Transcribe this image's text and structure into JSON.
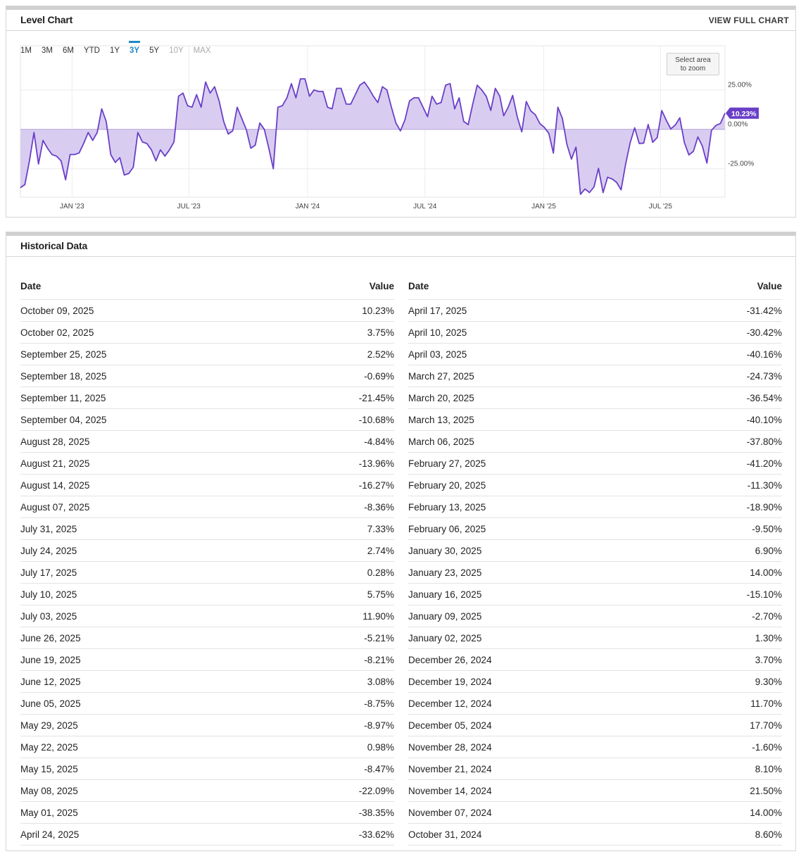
{
  "level_chart": {
    "title": "Level Chart",
    "view_full_chart": "VIEW FULL CHART",
    "ranges": [
      {
        "label": "1M",
        "state": "normal"
      },
      {
        "label": "3M",
        "state": "normal"
      },
      {
        "label": "6M",
        "state": "normal"
      },
      {
        "label": "YTD",
        "state": "normal"
      },
      {
        "label": "1Y",
        "state": "normal"
      },
      {
        "label": "3Y",
        "state": "active"
      },
      {
        "label": "5Y",
        "state": "normal"
      },
      {
        "label": "10Y",
        "state": "disabled"
      },
      {
        "label": "MAX",
        "state": "disabled"
      }
    ],
    "zoom_hint_line1": "Select area",
    "zoom_hint_line2": "to zoom",
    "current_label": "10.23%",
    "line_color": "#6a3fc8",
    "fill_color": "#d8cdf0"
  },
  "chart_data": {
    "type": "area",
    "x_tick_labels": [
      "JAN '23",
      "JUL '23",
      "JAN '24",
      "JUL '24",
      "JAN '25",
      "JUL '25"
    ],
    "y_tick_labels": [
      "25.00%",
      "0.00%",
      "-25.00%"
    ],
    "y_ticks": [
      25,
      0,
      -25
    ],
    "ylim": [
      -43,
      53
    ],
    "x_start": "2022-10-13",
    "x_end": "2025-10-09",
    "grid": true,
    "points": [
      [
        "2022-10-13",
        -37
      ],
      [
        "2022-10-20",
        -35
      ],
      [
        "2022-10-27",
        -20
      ],
      [
        "2022-11-03",
        -2
      ],
      [
        "2022-11-10",
        -22
      ],
      [
        "2022-11-17",
        -7
      ],
      [
        "2022-11-24",
        -12
      ],
      [
        "2022-12-01",
        -16
      ],
      [
        "2022-12-08",
        -17
      ],
      [
        "2022-12-15",
        -20
      ],
      [
        "2022-12-22",
        -32
      ],
      [
        "2022-12-29",
        -16
      ],
      [
        "2023-01-05",
        -16
      ],
      [
        "2023-01-12",
        -15
      ],
      [
        "2023-01-19",
        -9
      ],
      [
        "2023-01-26",
        -2
      ],
      [
        "2023-02-02",
        -7
      ],
      [
        "2023-02-09",
        -2
      ],
      [
        "2023-02-16",
        13
      ],
      [
        "2023-02-23",
        5
      ],
      [
        "2023-03-02",
        -16
      ],
      [
        "2023-03-09",
        -21
      ],
      [
        "2023-03-16",
        -18
      ],
      [
        "2023-03-23",
        -29
      ],
      [
        "2023-03-30",
        -28
      ],
      [
        "2023-04-06",
        -24
      ],
      [
        "2023-04-13",
        -2
      ],
      [
        "2023-04-20",
        -8
      ],
      [
        "2023-04-27",
        -9
      ],
      [
        "2023-05-04",
        -13
      ],
      [
        "2023-05-11",
        -20
      ],
      [
        "2023-05-18",
        -13
      ],
      [
        "2023-05-25",
        -17
      ],
      [
        "2023-06-01",
        -13
      ],
      [
        "2023-06-08",
        -8
      ],
      [
        "2023-06-15",
        21
      ],
      [
        "2023-06-22",
        23
      ],
      [
        "2023-06-29",
        15
      ],
      [
        "2023-07-06",
        14
      ],
      [
        "2023-07-13",
        22
      ],
      [
        "2023-07-20",
        14
      ],
      [
        "2023-07-27",
        30
      ],
      [
        "2023-08-03",
        23
      ],
      [
        "2023-08-10",
        27
      ],
      [
        "2023-08-17",
        18
      ],
      [
        "2023-08-24",
        5
      ],
      [
        "2023-08-31",
        -3
      ],
      [
        "2023-09-07",
        -1
      ],
      [
        "2023-09-14",
        14
      ],
      [
        "2023-09-21",
        7
      ],
      [
        "2023-09-28",
        0
      ],
      [
        "2023-10-05",
        -12
      ],
      [
        "2023-10-12",
        -10
      ],
      [
        "2023-10-19",
        4
      ],
      [
        "2023-10-26",
        0
      ],
      [
        "2023-11-02",
        -12
      ],
      [
        "2023-11-09",
        -25
      ],
      [
        "2023-11-16",
        14
      ],
      [
        "2023-11-23",
        15
      ],
      [
        "2023-11-30",
        20
      ],
      [
        "2023-12-07",
        29
      ],
      [
        "2023-12-14",
        20
      ],
      [
        "2023-12-21",
        32
      ],
      [
        "2023-12-28",
        32
      ],
      [
        "2024-01-04",
        21
      ],
      [
        "2024-01-11",
        25
      ],
      [
        "2024-01-18",
        24
      ],
      [
        "2024-01-25",
        24
      ],
      [
        "2024-02-01",
        14
      ],
      [
        "2024-02-08",
        13
      ],
      [
        "2024-02-15",
        26
      ],
      [
        "2024-02-22",
        26
      ],
      [
        "2024-03-01",
        16
      ],
      [
        "2024-03-08",
        16
      ],
      [
        "2024-03-15",
        22
      ],
      [
        "2024-03-22",
        28
      ],
      [
        "2024-03-29",
        30
      ],
      [
        "2024-04-05",
        26
      ],
      [
        "2024-04-12",
        21
      ],
      [
        "2024-04-19",
        17
      ],
      [
        "2024-04-26",
        27
      ],
      [
        "2024-05-03",
        25
      ],
      [
        "2024-05-10",
        14
      ],
      [
        "2024-05-17",
        4
      ],
      [
        "2024-05-24",
        -1
      ],
      [
        "2024-05-31",
        6
      ],
      [
        "2024-06-07",
        18
      ],
      [
        "2024-06-14",
        20
      ],
      [
        "2024-06-21",
        20
      ],
      [
        "2024-06-28",
        14
      ],
      [
        "2024-07-05",
        8
      ],
      [
        "2024-07-12",
        21
      ],
      [
        "2024-07-19",
        16
      ],
      [
        "2024-07-26",
        17
      ],
      [
        "2024-08-02",
        28
      ],
      [
        "2024-08-09",
        29
      ],
      [
        "2024-08-16",
        13
      ],
      [
        "2024-08-23",
        20
      ],
      [
        "2024-08-30",
        5
      ],
      [
        "2024-09-06",
        3
      ],
      [
        "2024-09-13",
        16
      ],
      [
        "2024-09-20",
        28
      ],
      [
        "2024-09-27",
        25
      ],
      [
        "2024-10-04",
        21
      ],
      [
        "2024-10-11",
        12
      ],
      [
        "2024-10-18",
        26
      ],
      [
        "2024-10-25",
        21
      ],
      [
        "2024-10-31",
        8.6
      ],
      [
        "2024-11-07",
        14
      ],
      [
        "2024-11-14",
        21.5
      ],
      [
        "2024-11-21",
        8.1
      ],
      [
        "2024-11-28",
        -1.6
      ],
      [
        "2024-12-05",
        17.7
      ],
      [
        "2024-12-12",
        11.7
      ],
      [
        "2024-12-19",
        9.3
      ],
      [
        "2024-12-26",
        3.7
      ],
      [
        "2025-01-02",
        1.3
      ],
      [
        "2025-01-09",
        -2.7
      ],
      [
        "2025-01-16",
        -15.1
      ],
      [
        "2025-01-23",
        14
      ],
      [
        "2025-01-30",
        6.9
      ],
      [
        "2025-02-06",
        -9.5
      ],
      [
        "2025-02-13",
        -18.9
      ],
      [
        "2025-02-20",
        -11.3
      ],
      [
        "2025-02-27",
        -41.2
      ],
      [
        "2025-03-06",
        -37.8
      ],
      [
        "2025-03-13",
        -40.1
      ],
      [
        "2025-03-20",
        -36.54
      ],
      [
        "2025-03-27",
        -24.73
      ],
      [
        "2025-04-03",
        -40.16
      ],
      [
        "2025-04-10",
        -30.42
      ],
      [
        "2025-04-17",
        -31.42
      ],
      [
        "2025-04-24",
        -33.62
      ],
      [
        "2025-05-01",
        -38.35
      ],
      [
        "2025-05-08",
        -22.09
      ],
      [
        "2025-05-15",
        -8.47
      ],
      [
        "2025-05-22",
        0.98
      ],
      [
        "2025-05-29",
        -8.97
      ],
      [
        "2025-06-05",
        -8.75
      ],
      [
        "2025-06-12",
        3.08
      ],
      [
        "2025-06-19",
        -8.21
      ],
      [
        "2025-06-26",
        -5.21
      ],
      [
        "2025-07-03",
        11.9
      ],
      [
        "2025-07-10",
        5.75
      ],
      [
        "2025-07-17",
        0.28
      ],
      [
        "2025-07-24",
        2.74
      ],
      [
        "2025-07-31",
        7.33
      ],
      [
        "2025-08-07",
        -8.36
      ],
      [
        "2025-08-14",
        -16.27
      ],
      [
        "2025-08-21",
        -13.96
      ],
      [
        "2025-08-28",
        -4.84
      ],
      [
        "2025-09-04",
        -10.68
      ],
      [
        "2025-09-11",
        -21.45
      ],
      [
        "2025-09-18",
        -0.69
      ],
      [
        "2025-09-25",
        2.52
      ],
      [
        "2025-10-02",
        3.75
      ],
      [
        "2025-10-09",
        10.23
      ]
    ]
  },
  "historical": {
    "title": "Historical Data",
    "date_header": "Date",
    "value_header": "Value",
    "left": [
      {
        "date": "October 09, 2025",
        "value": "10.23%"
      },
      {
        "date": "October 02, 2025",
        "value": "3.75%"
      },
      {
        "date": "September 25, 2025",
        "value": "2.52%"
      },
      {
        "date": "September 18, 2025",
        "value": "-0.69%"
      },
      {
        "date": "September 11, 2025",
        "value": "-21.45%"
      },
      {
        "date": "September 04, 2025",
        "value": "-10.68%"
      },
      {
        "date": "August 28, 2025",
        "value": "-4.84%"
      },
      {
        "date": "August 21, 2025",
        "value": "-13.96%"
      },
      {
        "date": "August 14, 2025",
        "value": "-16.27%"
      },
      {
        "date": "August 07, 2025",
        "value": "-8.36%"
      },
      {
        "date": "July 31, 2025",
        "value": "7.33%"
      },
      {
        "date": "July 24, 2025",
        "value": "2.74%"
      },
      {
        "date": "July 17, 2025",
        "value": "0.28%"
      },
      {
        "date": "July 10, 2025",
        "value": "5.75%"
      },
      {
        "date": "July 03, 2025",
        "value": "11.90%"
      },
      {
        "date": "June 26, 2025",
        "value": "-5.21%"
      },
      {
        "date": "June 19, 2025",
        "value": "-8.21%"
      },
      {
        "date": "June 12, 2025",
        "value": "3.08%"
      },
      {
        "date": "June 05, 2025",
        "value": "-8.75%"
      },
      {
        "date": "May 29, 2025",
        "value": "-8.97%"
      },
      {
        "date": "May 22, 2025",
        "value": "0.98%"
      },
      {
        "date": "May 15, 2025",
        "value": "-8.47%"
      },
      {
        "date": "May 08, 2025",
        "value": "-22.09%"
      },
      {
        "date": "May 01, 2025",
        "value": "-38.35%"
      },
      {
        "date": "April 24, 2025",
        "value": "-33.62%"
      }
    ],
    "right": [
      {
        "date": "April 17, 2025",
        "value": "-31.42%"
      },
      {
        "date": "April 10, 2025",
        "value": "-30.42%"
      },
      {
        "date": "April 03, 2025",
        "value": "-40.16%"
      },
      {
        "date": "March 27, 2025",
        "value": "-24.73%"
      },
      {
        "date": "March 20, 2025",
        "value": "-36.54%"
      },
      {
        "date": "March 13, 2025",
        "value": "-40.10%"
      },
      {
        "date": "March 06, 2025",
        "value": "-37.80%"
      },
      {
        "date": "February 27, 2025",
        "value": "-41.20%"
      },
      {
        "date": "February 20, 2025",
        "value": "-11.30%"
      },
      {
        "date": "February 13, 2025",
        "value": "-18.90%"
      },
      {
        "date": "February 06, 2025",
        "value": "-9.50%"
      },
      {
        "date": "January 30, 2025",
        "value": "6.90%"
      },
      {
        "date": "January 23, 2025",
        "value": "14.00%"
      },
      {
        "date": "January 16, 2025",
        "value": "-15.10%"
      },
      {
        "date": "January 09, 2025",
        "value": "-2.70%"
      },
      {
        "date": "January 02, 2025",
        "value": "1.30%"
      },
      {
        "date": "December 26, 2024",
        "value": "3.70%"
      },
      {
        "date": "December 19, 2024",
        "value": "9.30%"
      },
      {
        "date": "December 12, 2024",
        "value": "11.70%"
      },
      {
        "date": "December 05, 2024",
        "value": "17.70%"
      },
      {
        "date": "November 28, 2024",
        "value": "-1.60%"
      },
      {
        "date": "November 21, 2024",
        "value": "8.10%"
      },
      {
        "date": "November 14, 2024",
        "value": "21.50%"
      },
      {
        "date": "November 07, 2024",
        "value": "14.00%"
      },
      {
        "date": "October 31, 2024",
        "value": "8.60%"
      }
    ]
  }
}
